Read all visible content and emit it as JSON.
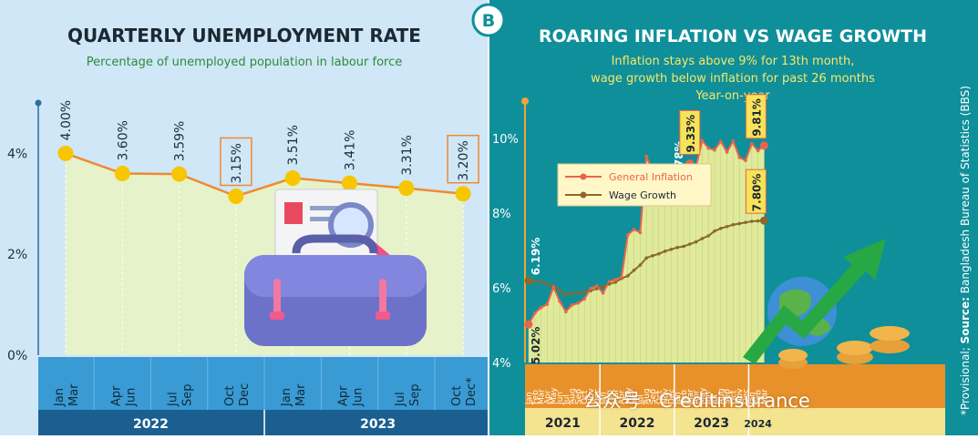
{
  "logo_text": "B",
  "watermark": "公众号 · Creditinsurance",
  "colors": {
    "left_bg": "#cfe7f7",
    "left_fill": "#e7f2c6",
    "left_line": "#ef8a33",
    "left_marker": "#f7c600",
    "left_band": "#3a9ad3",
    "left_year_band": "#1b5f91",
    "right_bg": "#0f8f9a",
    "right_fill": "#ecef9c",
    "inflation": "#e9654a",
    "wage": "#8a6a2c",
    "right_band": "#e8912a",
    "right_year_band": "#f4e38f",
    "title_dark": "#1c2833",
    "title_light": "#ffffff",
    "subtitle_left": "#2f8a3a",
    "subtitle_right": "#f6e86a"
  },
  "chart_data": [
    {
      "type": "line",
      "title": "QUARTERLY UNEMPLOYMENT RATE",
      "subtitle": "Percentage of unemployed population in labour force",
      "categories": [
        [
          "Jan",
          "Mar"
        ],
        [
          "Apr",
          "Jun"
        ],
        [
          "Jul",
          "Sep"
        ],
        [
          "Oct",
          "Dec"
        ],
        [
          "Jan",
          "Mar"
        ],
        [
          "Apr",
          "Jun"
        ],
        [
          "Jul",
          "Sep"
        ],
        [
          "Oct",
          "Dec*"
        ]
      ],
      "years": [
        {
          "label": "2022",
          "from": 0,
          "to": 3
        },
        {
          "label": "2023",
          "from": 4,
          "to": 7
        }
      ],
      "series": [
        {
          "values": [
            4.0,
            3.6,
            3.59,
            3.15,
            3.51,
            3.41,
            3.31,
            3.2
          ],
          "labels": [
            "4.00%",
            "3.60%",
            "3.59%",
            "3.15%",
            "3.51%",
            "3.41%",
            "3.31%",
            "3.20%"
          ]
        }
      ],
      "boxed_labels": [
        3,
        7
      ],
      "yticks": [
        {
          "v": 0,
          "label": "0%"
        },
        {
          "v": 2,
          "label": "2%"
        },
        {
          "v": 4,
          "label": "4%"
        }
      ],
      "ylim": [
        0,
        5
      ],
      "grid": false,
      "area_fill": true
    },
    {
      "type": "line",
      "title": "ROARING INFLATION VS WAGE GROWTH",
      "subtitle": [
        "Inflation stays above 9% for 13th month,",
        "wage growth below inflation for past 26 months",
        "Year-on-year"
      ],
      "source_note": "*Provisional; Source: Bangladesh Bureau of Statistics (BBS)",
      "source_bold": "Source:",
      "month_labels": [
        "Jan",
        "Feb",
        "Mar",
        "Apr",
        "May",
        "Jun",
        "Jul",
        "Aug",
        "Sep",
        "Oct",
        "Nov",
        "Dec",
        "Jan",
        "Feb",
        "Mar",
        "Apr",
        "May",
        "Jun",
        "Jul",
        "Aug",
        "Sep",
        "Oct",
        "Nov",
        "Dec",
        "Jan",
        "Feb",
        "Mar",
        "Apr",
        "May",
        "Jun",
        "Jul",
        "Aug",
        "Sep",
        "Oct",
        "Nov",
        "Dec",
        "Jan",
        "Feb",
        "Mar"
      ],
      "years": [
        {
          "label": "2021",
          "from": 0,
          "to": 11
        },
        {
          "label": "2022",
          "from": 12,
          "to": 23
        },
        {
          "label": "2023",
          "from": 24,
          "to": 35
        },
        {
          "label": "2024",
          "from": 36,
          "to": 38
        }
      ],
      "series": [
        {
          "name": "General Inflation",
          "values": [
            5.02,
            5.32,
            5.47,
            5.56,
            6.02,
            5.64,
            5.36,
            5.54,
            5.59,
            5.7,
            5.98,
            6.05,
            5.86,
            6.17,
            6.22,
            6.29,
            7.42,
            7.56,
            7.48,
            9.52,
            9.1,
            8.91,
            8.85,
            8.71,
            8.57,
            8.78,
            9.33,
            9.24,
            9.94,
            9.74,
            9.69,
            9.92,
            9.63,
            9.93,
            9.49,
            9.41,
            9.86,
            9.67,
            9.81
          ]
        },
        {
          "name": "Wage Growth",
          "values": [
            6.19,
            6.17,
            6.16,
            6.09,
            6.06,
            5.93,
            5.81,
            5.85,
            5.86,
            5.89,
            5.92,
            5.98,
            6.03,
            6.1,
            6.15,
            6.25,
            6.32,
            6.47,
            6.61,
            6.8,
            6.86,
            6.91,
            6.98,
            7.03,
            7.08,
            7.11,
            7.17,
            7.23,
            7.32,
            7.39,
            7.52,
            7.59,
            7.64,
            7.69,
            7.72,
            7.75,
            7.78,
            7.79,
            7.8
          ]
        }
      ],
      "annotations": [
        {
          "series": 1,
          "index": 0,
          "label": "6.19%",
          "boxed": false
        },
        {
          "series": 0,
          "index": 0,
          "label": "5.02%",
          "boxed": false
        },
        {
          "series": 0,
          "index": 25,
          "label": "8.78%",
          "boxed": false
        },
        {
          "series": 0,
          "index": 26,
          "label": "9.33%",
          "boxed": true
        },
        {
          "series": 0,
          "index": 38,
          "label": "9.81%",
          "boxed": true
        },
        {
          "series": 1,
          "index": 38,
          "label": "7.80%",
          "boxed": true
        }
      ],
      "yticks": [
        {
          "v": 4,
          "label": "4%"
        },
        {
          "v": 6,
          "label": "6%"
        },
        {
          "v": 8,
          "label": "8%"
        },
        {
          "v": 10,
          "label": "10%"
        }
      ],
      "ylim": [
        4,
        11
      ],
      "legend": "top-left",
      "grid": false
    }
  ]
}
